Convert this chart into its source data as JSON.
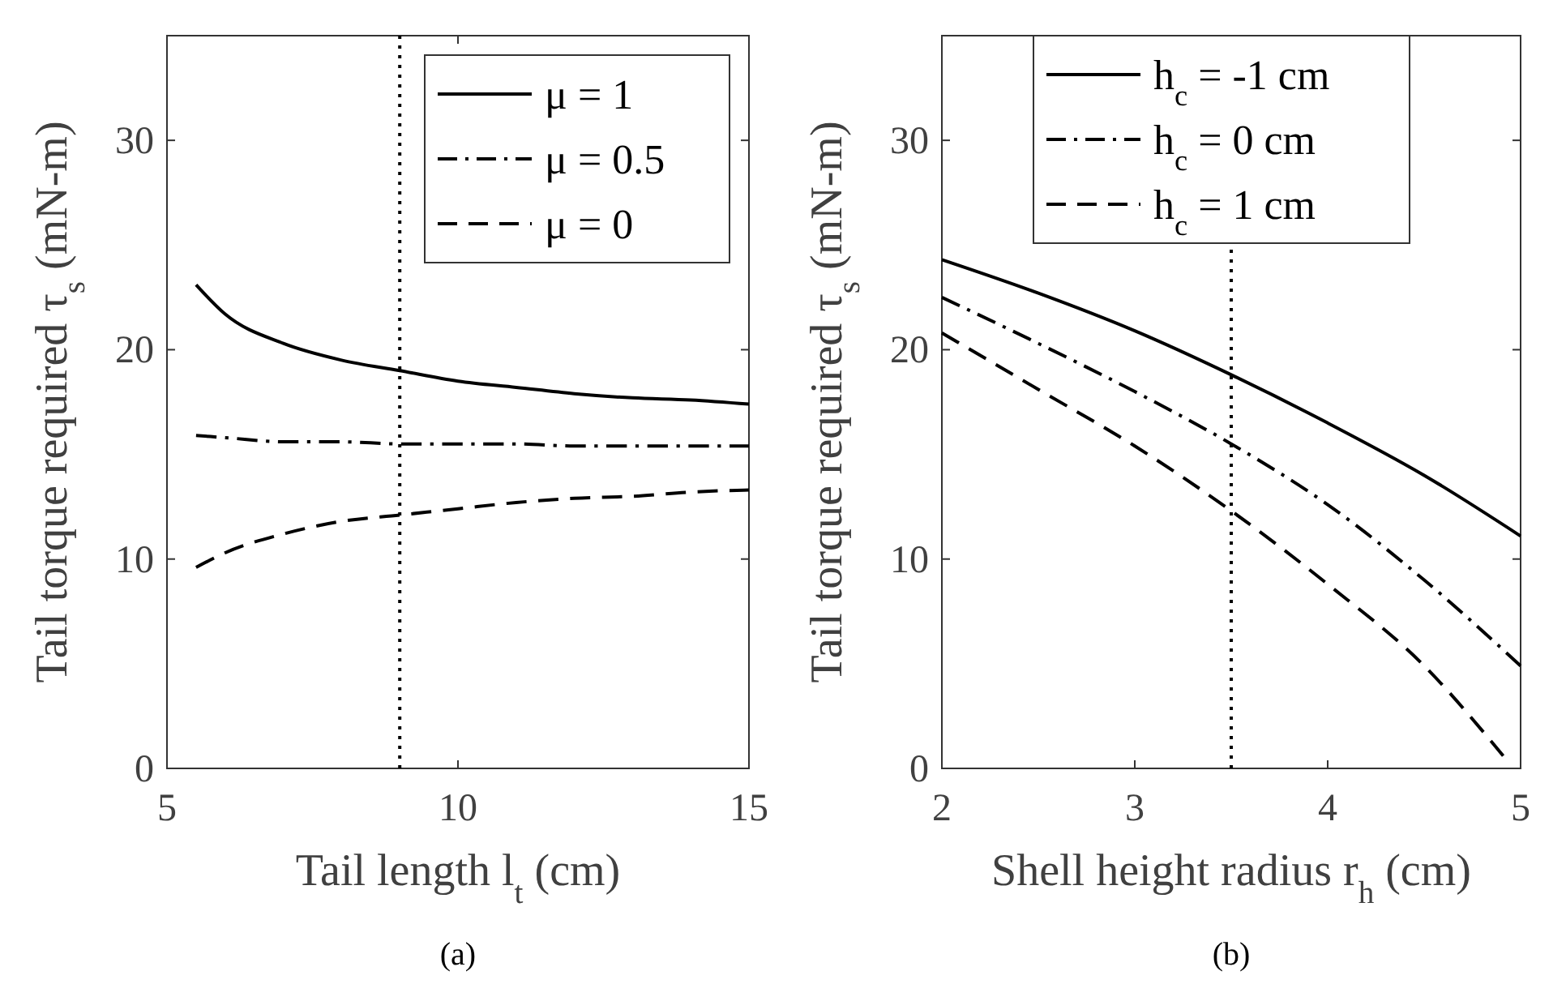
{
  "chart_data": [
    {
      "type": "line",
      "xlabel": "Tail length l$_{t}$ (cm)",
      "ylabel": "Tail torque required τ$_{s}$ (mN-m)",
      "annotations": [
        "(a)"
      ],
      "xlim": [
        5,
        15
      ],
      "xticks": [
        5,
        10,
        15
      ],
      "ylim": [
        0,
        35
      ],
      "yticks": [
        0,
        10,
        20,
        30
      ],
      "legend": "top right",
      "grid": false,
      "ref_lines": [
        {
          "axis": "x",
          "value": 9,
          "line_style": "dotted",
          "color": "#000000"
        }
      ],
      "x": [
        5.5,
        6,
        7,
        8,
        9,
        10,
        11,
        12,
        13,
        14,
        15
      ],
      "series": [
        {
          "name": "μ = 1",
          "color": "#000000",
          "line_style": "solid",
          "values": [
            23.1,
            21.7,
            20.3,
            19.5,
            19.0,
            18.5,
            18.2,
            17.9,
            17.7,
            17.6,
            17.4
          ]
        },
        {
          "name": "μ = 0.5",
          "color": "#000000",
          "line_style": "dashdot",
          "values": [
            15.9,
            15.8,
            15.6,
            15.6,
            15.5,
            15.5,
            15.5,
            15.4,
            15.4,
            15.4,
            15.4
          ]
        },
        {
          "name": "μ = 0",
          "color": "#000000",
          "line_style": "dashed",
          "values": [
            9.6,
            10.3,
            11.2,
            11.8,
            12.1,
            12.4,
            12.7,
            12.9,
            13.0,
            13.2,
            13.3
          ]
        }
      ]
    },
    {
      "type": "line",
      "xlabel": "Shell height radius r$_{h}$ (cm)",
      "ylabel": "Tail torque required τ$_{s}$ (mN-m)",
      "annotations": [
        "(b)"
      ],
      "xlim": [
        2,
        5
      ],
      "xticks": [
        2,
        3,
        4,
        5
      ],
      "ylim": [
        0,
        35
      ],
      "yticks": [
        0,
        10,
        20,
        30
      ],
      "legend": "top",
      "grid": false,
      "ref_lines": [
        {
          "axis": "x",
          "value": 3.5,
          "line_style": "dotted",
          "color": "#000000"
        }
      ],
      "series": [
        {
          "name": "h$_{c}$ = -1 cm",
          "color": "#000000",
          "line_style": "solid",
          "x": [
            2,
            2.5,
            3,
            3.5,
            4,
            4.5,
            5
          ],
          "values": [
            24.3,
            22.7,
            20.9,
            18.8,
            16.5,
            14.0,
            11.1
          ]
        },
        {
          "name": "h$_{c}$ = 0 cm",
          "color": "#000000",
          "line_style": "dashdot",
          "x": [
            2,
            2.5,
            3,
            3.5,
            4,
            4.5,
            5
          ],
          "values": [
            22.5,
            20.3,
            18.0,
            15.5,
            12.6,
            9.0,
            4.9
          ]
        },
        {
          "name": "h$_{c}$ = 1 cm",
          "color": "#000000",
          "line_style": "dashed",
          "x": [
            2,
            2.5,
            3,
            3.5,
            4,
            4.5,
            4.91
          ],
          "values": [
            20.8,
            18.1,
            15.4,
            12.3,
            8.8,
            4.9,
            0.6
          ]
        }
      ]
    }
  ]
}
